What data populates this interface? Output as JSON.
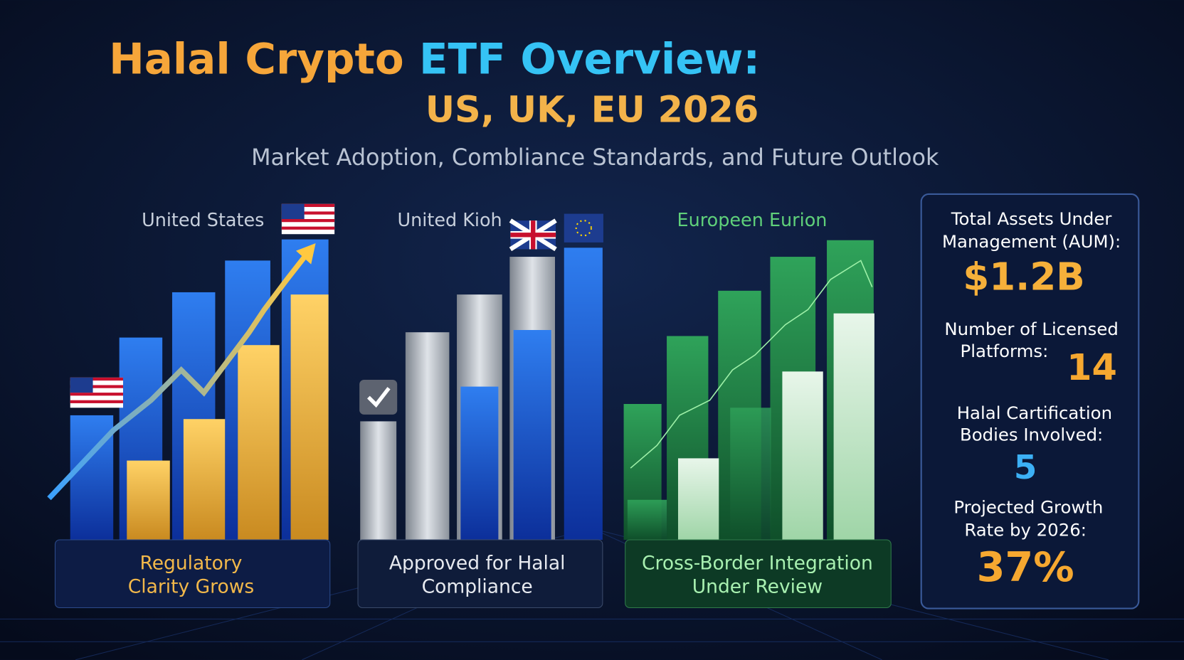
{
  "header": {
    "title_part1": "Halal Crypto",
    "title_part2": "ETF Overview:",
    "title_line2": "US, UK, EU 2026",
    "subtitle": "Market Adoption, Combliance Standards, and Future Outlook"
  },
  "regions": [
    {
      "label": "United States",
      "caption": [
        "Regulatory",
        "Clarity Grows"
      ]
    },
    {
      "label": "United Kioh",
      "caption": [
        "Approved for Halal",
        "Compliance"
      ]
    },
    {
      "label": "Europeen Eurion",
      "caption": [
        "Cross-Border Integration",
        "Under Review"
      ]
    }
  ],
  "stats": [
    {
      "label": [
        "Total Assets Under",
        "Management (AUM):"
      ],
      "value": "$1.2B"
    },
    {
      "label": [
        "Number of Licensed",
        "Platforms:"
      ],
      "value": "14"
    },
    {
      "label": [
        "Halal Cartification",
        "Bodies Involved:"
      ],
      "value": "5"
    },
    {
      "label": [
        "Projected Growth",
        "Rate by 2026:"
      ],
      "value": "37%"
    }
  ]
}
